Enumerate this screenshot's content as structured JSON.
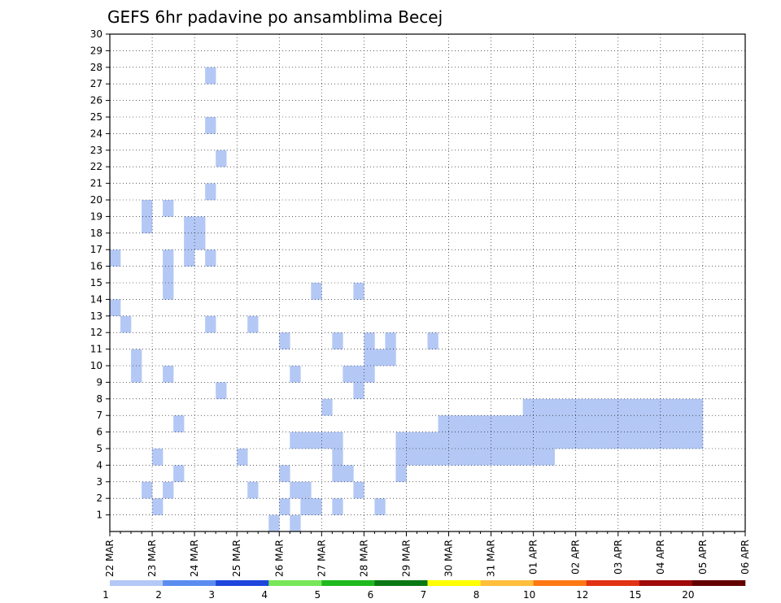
{
  "chart_data": {
    "type": "heatmap",
    "title": "GEFS 6hr padavine po ansamblima Becej",
    "xlabel": "",
    "ylabel": "",
    "x_tick_labels": [
      "22 MAR",
      "23 MAR",
      "24 MAR",
      "25 MAR",
      "26 MAR",
      "27 MAR",
      "28 MAR",
      "29 MAR",
      "30 MAR",
      "31 MAR",
      "01 APR",
      "02 APR",
      "03 APR",
      "04 APR",
      "05 APR",
      "06 APR"
    ],
    "y_tick_labels": [
      "1",
      "2",
      "3",
      "4",
      "5",
      "6",
      "7",
      "8",
      "9",
      "10",
      "11",
      "12",
      "13",
      "14",
      "15",
      "16",
      "17",
      "18",
      "19",
      "20",
      "21",
      "22",
      "23",
      "24",
      "25",
      "26",
      "27",
      "28",
      "29",
      "30"
    ],
    "xlim": [
      0,
      60
    ],
    "ylim": [
      0,
      30
    ],
    "grid": true,
    "time_step": "6hr",
    "colorbar": {
      "levels": [
        "1",
        "2",
        "3",
        "4",
        "5",
        "6",
        "7",
        "8",
        "10",
        "12",
        "15",
        "20"
      ],
      "colors": [
        "#b4c8f5",
        "#5a8cf0",
        "#1e46dc",
        "#78e65a",
        "#1eb91e",
        "#0a7814",
        "#ffff00",
        "#ffbe3c",
        "#ff7814",
        "#e13214",
        "#a00a0a",
        "#640000"
      ]
    },
    "cells": [
      [
        1,
        5,
        1
      ],
      [
        1,
        19,
        4
      ],
      [
        1,
        19,
        8
      ],
      [
        1,
        20,
        9
      ],
      [
        1,
        20,
        6
      ],
      [
        1,
        21,
        4
      ],
      [
        1,
        23,
        2
      ],
      [
        1,
        24,
        2
      ],
      [
        1,
        25,
        1
      ],
      [
        1,
        26,
        4
      ],
      [
        1,
        27,
        5
      ],
      [
        1,
        28,
        4
      ],
      [
        1,
        29,
        1
      ],
      [
        1,
        29,
        2
      ],
      [
        1,
        30,
        1
      ],
      [
        1,
        30,
        2
      ],
      [
        1,
        30,
        3
      ],
      [
        1,
        31,
        6
      ],
      [
        1,
        31,
        7
      ],
      [
        1,
        31,
        3
      ],
      [
        1,
        31,
        10
      ],
      [
        1,
        31,
        11
      ],
      [
        1,
        32,
        10
      ],
      [
        1,
        33,
        6
      ],
      [
        1,
        34,
        5
      ],
      [
        1,
        35,
        5
      ],
      [
        1,
        35,
        4
      ],
      [
        1,
        36,
        3
      ],
      [
        1,
        37,
        1
      ],
      [
        1,
        37,
        7
      ],
      [
        1,
        37,
        22
      ],
      [
        1,
        38,
        4
      ],
      [
        1,
        38,
        5
      ],
      [
        1,
        38,
        6
      ],
      [
        1,
        39,
        6
      ],
      [
        1,
        39,
        9
      ],
      [
        1,
        39,
        10
      ],
      [
        1,
        40,
        8
      ],
      [
        1,
        40,
        9
      ],
      [
        1,
        40,
        10
      ],
      [
        1,
        40,
        11
      ],
      [
        1,
        40,
        18
      ],
      [
        1,
        40,
        19
      ],
      [
        1,
        41,
        7
      ],
      [
        1,
        42,
        6
      ],
      [
        1,
        42,
        9
      ],
      [
        1,
        42,
        13
      ],
      [
        1,
        43,
        6
      ],
      [
        1,
        43,
        12
      ],
      [
        1,
        43,
        15
      ],
      [
        1,
        44,
        12
      ],
      [
        1,
        45,
        17
      ],
      [
        1,
        45,
        20
      ],
      [
        1,
        47,
        1
      ],
      [
        1,
        47,
        24
      ],
      [
        1,
        48,
        10
      ],
      [
        1,
        48,
        11
      ],
      [
        1,
        48,
        12
      ],
      [
        1,
        48,
        17
      ],
      [
        1,
        48,
        26
      ],
      [
        1,
        50,
        5
      ],
      [
        1,
        50,
        9
      ],
      [
        1,
        50,
        10
      ],
      [
        1,
        51,
        9
      ],
      [
        1,
        51,
        20
      ],
      [
        1,
        53,
        24
      ],
      [
        1,
        53,
        26
      ],
      [
        1,
        54,
        3
      ],
      [
        1,
        55,
        5
      ],
      [
        1,
        56,
        17
      ],
      [
        1,
        56,
        19
      ],
      [
        1,
        56,
        21
      ],
      [
        1,
        56,
        23
      ],
      [
        1,
        57,
        14
      ],
      [
        1,
        57,
        17
      ],
      [
        1,
        58,
        13
      ],
      [
        1,
        59,
        10
      ],
      [
        1,
        59,
        11
      ],
      [
        1,
        60,
        3
      ],
      [
        1,
        60,
        19
      ],
      [
        1,
        60,
        20
      ],
      [
        1,
        61,
        2
      ],
      [
        1,
        61,
        5
      ],
      [
        1,
        62,
        3
      ],
      [
        1,
        62,
        10
      ],
      [
        1,
        62,
        15
      ],
      [
        1,
        62,
        16
      ],
      [
        1,
        62,
        17
      ],
      [
        1,
        62,
        20
      ],
      [
        1,
        63,
        4
      ],
      [
        1,
        63,
        7
      ],
      [
        1,
        64,
        17
      ],
      [
        1,
        64,
        18
      ],
      [
        1,
        64,
        19
      ],
      [
        1,
        65,
        18
      ],
      [
        1,
        65,
        19
      ],
      [
        1,
        66,
        13
      ],
      [
        1,
        66,
        17
      ],
      [
        1,
        66,
        21
      ],
      [
        1,
        66,
        25
      ],
      [
        1,
        66,
        28
      ],
      [
        1,
        67,
        9
      ],
      [
        1,
        67,
        23
      ],
      [
        1,
        69,
        5
      ],
      [
        1,
        70,
        3
      ],
      [
        1,
        70,
        13
      ],
      [
        1,
        72,
        1
      ],
      [
        1,
        73,
        2
      ],
      [
        1,
        73,
        4
      ],
      [
        1,
        73,
        12
      ],
      [
        1,
        74,
        1
      ],
      [
        1,
        74,
        3
      ],
      [
        1,
        74,
        6
      ],
      [
        1,
        74,
        10
      ],
      [
        1,
        75,
        2
      ],
      [
        1,
        75,
        3
      ],
      [
        1,
        75,
        6
      ],
      [
        1,
        76,
        2
      ],
      [
        1,
        76,
        6
      ],
      [
        1,
        76,
        15
      ],
      [
        1,
        77,
        6
      ],
      [
        1,
        77,
        8
      ],
      [
        1,
        78,
        2
      ],
      [
        1,
        78,
        4
      ],
      [
        1,
        78,
        5
      ],
      [
        1,
        78,
        6
      ],
      [
        1,
        78,
        12
      ],
      [
        1,
        79,
        4
      ],
      [
        1,
        79,
        10
      ],
      [
        1,
        80,
        3
      ],
      [
        1,
        80,
        9
      ],
      [
        1,
        80,
        10
      ],
      [
        1,
        80,
        15
      ],
      [
        1,
        81,
        10
      ],
      [
        1,
        81,
        11
      ],
      [
        1,
        81,
        12
      ],
      [
        1,
        82,
        2
      ],
      [
        1,
        82,
        11
      ],
      [
        1,
        83,
        11
      ],
      [
        1,
        83,
        12
      ],
      [
        1,
        84,
        4
      ],
      [
        1,
        84,
        5
      ],
      [
        1,
        84,
        6
      ],
      [
        1,
        85,
        5
      ],
      [
        1,
        85,
        6
      ],
      [
        1,
        86,
        5
      ],
      [
        1,
        86,
        6
      ],
      [
        1,
        87,
        5
      ],
      [
        1,
        87,
        6
      ],
      [
        1,
        87,
        12
      ],
      [
        1,
        88,
        5
      ],
      [
        1,
        88,
        6
      ],
      [
        1,
        88,
        7
      ],
      [
        1,
        89,
        5
      ],
      [
        1,
        89,
        6
      ],
      [
        1,
        89,
        7
      ],
      [
        1,
        90,
        5
      ],
      [
        1,
        90,
        6
      ],
      [
        1,
        90,
        7
      ],
      [
        1,
        91,
        5
      ],
      [
        1,
        91,
        6
      ],
      [
        1,
        91,
        7
      ],
      [
        1,
        92,
        5
      ],
      [
        1,
        92,
        6
      ],
      [
        1,
        92,
        7
      ],
      [
        1,
        93,
        5
      ],
      [
        1,
        93,
        6
      ],
      [
        1,
        93,
        7
      ],
      [
        1,
        94,
        5
      ],
      [
        1,
        94,
        6
      ],
      [
        1,
        94,
        7
      ],
      [
        1,
        95,
        5
      ],
      [
        1,
        95,
        6
      ],
      [
        1,
        95,
        7
      ],
      [
        1,
        96,
        5
      ],
      [
        1,
        96,
        6
      ],
      [
        1,
        96,
        7
      ],
      [
        1,
        96,
        8
      ],
      [
        1,
        97,
        5
      ],
      [
        1,
        97,
        6
      ],
      [
        1,
        97,
        7
      ],
      [
        1,
        97,
        8
      ],
      [
        1,
        98,
        5
      ],
      [
        1,
        98,
        6
      ],
      [
        1,
        98,
        7
      ],
      [
        1,
        98,
        8
      ],
      [
        1,
        99,
        6
      ],
      [
        1,
        99,
        7
      ],
      [
        1,
        99,
        8
      ],
      [
        1,
        100,
        6
      ],
      [
        1,
        100,
        7
      ],
      [
        1,
        100,
        8
      ],
      [
        1,
        101,
        6
      ],
      [
        1,
        101,
        7
      ],
      [
        1,
        101,
        8
      ],
      [
        1,
        102,
        6
      ],
      [
        1,
        102,
        7
      ],
      [
        1,
        102,
        8
      ],
      [
        1,
        103,
        6
      ],
      [
        1,
        103,
        7
      ],
      [
        1,
        103,
        8
      ],
      [
        1,
        104,
        6
      ],
      [
        1,
        104,
        7
      ],
      [
        1,
        104,
        8
      ],
      [
        1,
        105,
        6
      ],
      [
        1,
        105,
        7
      ],
      [
        1,
        105,
        8
      ],
      [
        1,
        106,
        6
      ],
      [
        1,
        106,
        7
      ],
      [
        1,
        106,
        8
      ],
      [
        1,
        107,
        6
      ],
      [
        1,
        107,
        7
      ],
      [
        1,
        107,
        8
      ],
      [
        1,
        108,
        6
      ],
      [
        1,
        108,
        7
      ],
      [
        1,
        108,
        8
      ],
      [
        1,
        109,
        6
      ],
      [
        1,
        109,
        7
      ],
      [
        1,
        109,
        8
      ],
      [
        1,
        110,
        6
      ],
      [
        1,
        110,
        7
      ],
      [
        1,
        110,
        8
      ],
      [
        1,
        111,
        6
      ],
      [
        1,
        111,
        7
      ],
      [
        1,
        111,
        8
      ],
      [
        1,
        112,
        6
      ],
      [
        1,
        112,
        7
      ],
      [
        1,
        112,
        8
      ]
    ]
  }
}
